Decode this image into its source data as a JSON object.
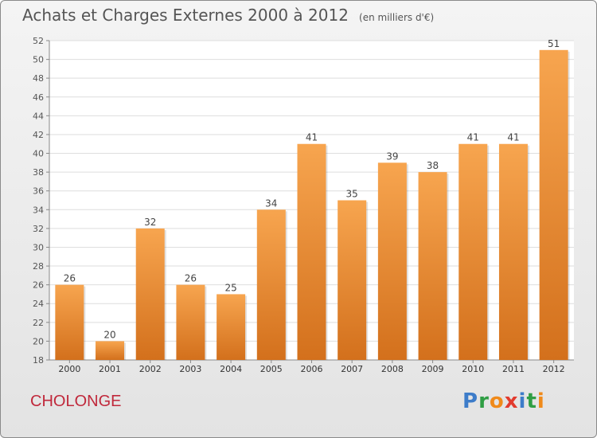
{
  "header": {
    "title": "Achats et Charges Externes 2000 à 2012",
    "unit": "(en milliers d'€)"
  },
  "footer": {
    "place": "CHOLONGE",
    "brand": [
      "P",
      "r",
      "o",
      "x",
      "i",
      "t",
      "i"
    ]
  },
  "colors": {
    "bar_top": "#f7a54f",
    "bar_bottom": "#d3701c",
    "place": "#c0283b",
    "brand": [
      "#3d7cc9",
      "#2f9e44",
      "#f08a1a",
      "#e23b2e",
      "#3d7cc9",
      "#2f9e44",
      "#f08a1a"
    ]
  },
  "chart_data": {
    "type": "bar",
    "categories": [
      "2000",
      "2001",
      "2002",
      "2003",
      "2004",
      "2005",
      "2006",
      "2007",
      "2008",
      "2009",
      "2010",
      "2011",
      "2012"
    ],
    "values": [
      26,
      20,
      32,
      26,
      25,
      34,
      41,
      35,
      39,
      38,
      41,
      41,
      51
    ],
    "ylim": [
      18,
      52
    ],
    "yticks": [
      18,
      20,
      22,
      24,
      26,
      28,
      30,
      32,
      34,
      36,
      38,
      40,
      42,
      44,
      46,
      48,
      50,
      52
    ],
    "grid": true,
    "data_labels": true
  }
}
